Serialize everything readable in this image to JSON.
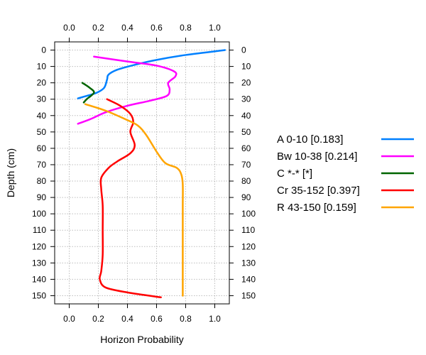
{
  "chart_data": {
    "type": "line",
    "xlabel": "Horizon Probability",
    "ylabel": "Depth (cm)",
    "xlim": [
      -0.1,
      1.1
    ],
    "ylim": [
      155,
      -5
    ],
    "x_ticks": [
      "0.0",
      "0.2",
      "0.4",
      "0.6",
      "0.8",
      "1.0"
    ],
    "x_tick_values": [
      0.0,
      0.2,
      0.4,
      0.6,
      0.8,
      1.0
    ],
    "y_ticks": [
      "0",
      "10",
      "20",
      "30",
      "40",
      "50",
      "60",
      "70",
      "80",
      "90",
      "100",
      "110",
      "120",
      "130",
      "140",
      "150"
    ],
    "y_tick_values": [
      0,
      10,
      20,
      30,
      40,
      50,
      60,
      70,
      80,
      90,
      100,
      110,
      120,
      130,
      140,
      150
    ],
    "grid": true,
    "legend_position": "right",
    "series": [
      {
        "name": "A 0-10 [0.183]",
        "color": "#0080ff",
        "points": [
          [
            1.07,
            0
          ],
          [
            0.8,
            3
          ],
          [
            0.6,
            6
          ],
          [
            0.45,
            9
          ],
          [
            0.33,
            12
          ],
          [
            0.27,
            15
          ],
          [
            0.26,
            18
          ],
          [
            0.24,
            23
          ],
          [
            0.19,
            26
          ],
          [
            0.12,
            28
          ],
          [
            0.06,
            29.5
          ]
        ]
      },
      {
        "name": "Bw 10-38 [0.214]",
        "color": "#ff00ff",
        "points": [
          [
            0.17,
            4
          ],
          [
            0.4,
            7
          ],
          [
            0.6,
            9.5
          ],
          [
            0.72,
            13
          ],
          [
            0.73,
            16
          ],
          [
            0.68,
            20
          ],
          [
            0.69,
            24
          ],
          [
            0.67,
            28
          ],
          [
            0.55,
            31
          ],
          [
            0.4,
            34
          ],
          [
            0.25,
            38
          ],
          [
            0.15,
            42
          ],
          [
            0.06,
            45
          ]
        ]
      },
      {
        "name": "C *-* [*]",
        "color": "#006400",
        "points": [
          [
            0.09,
            20
          ],
          [
            0.14,
            23
          ],
          [
            0.17,
            26
          ],
          [
            0.12,
            30
          ],
          [
            0.1,
            32
          ]
        ]
      },
      {
        "name": "Cr 35-152 [0.397]",
        "color": "#ff0000",
        "points": [
          [
            0.26,
            30
          ],
          [
            0.35,
            34
          ],
          [
            0.42,
            39
          ],
          [
            0.44,
            44
          ],
          [
            0.42,
            50
          ],
          [
            0.45,
            58
          ],
          [
            0.42,
            63
          ],
          [
            0.33,
            68
          ],
          [
            0.27,
            72
          ],
          [
            0.22,
            78
          ],
          [
            0.22,
            85
          ],
          [
            0.23,
            95
          ],
          [
            0.23,
            110
          ],
          [
            0.23,
            125
          ],
          [
            0.22,
            135
          ],
          [
            0.21,
            140
          ],
          [
            0.25,
            145
          ],
          [
            0.4,
            148
          ],
          [
            0.63,
            151
          ]
        ]
      },
      {
        "name": "R 43-150 [0.159]",
        "color": "#ffa500",
        "points": [
          [
            0.11,
            33
          ],
          [
            0.25,
            37
          ],
          [
            0.38,
            42
          ],
          [
            0.47,
            46
          ],
          [
            0.53,
            52
          ],
          [
            0.6,
            62
          ],
          [
            0.66,
            69
          ],
          [
            0.74,
            72
          ],
          [
            0.77,
            76
          ],
          [
            0.78,
            82
          ],
          [
            0.78,
            95
          ],
          [
            0.78,
            110
          ],
          [
            0.78,
            125
          ],
          [
            0.78,
            140
          ],
          [
            0.78,
            150
          ]
        ]
      }
    ]
  }
}
